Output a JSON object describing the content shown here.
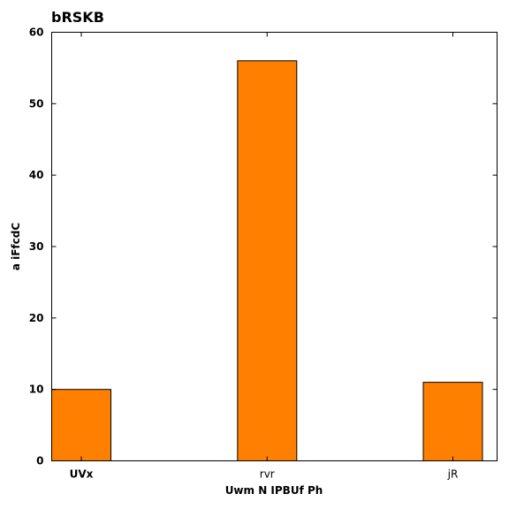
{
  "chart_data": {
    "type": "bar",
    "title": "bRSKB",
    "xlabel": "Uwm N IPBUf Ph",
    "ylabel": "a iFfcdC",
    "categories": [
      "UVx",
      "rvr",
      "jR"
    ],
    "values": [
      10,
      56,
      11
    ],
    "ylim": [
      0,
      60
    ],
    "yticks": [
      0,
      10,
      20,
      30,
      40,
      50,
      60
    ],
    "bar_color": "#ff7f00",
    "grid": false,
    "legend": "none"
  }
}
